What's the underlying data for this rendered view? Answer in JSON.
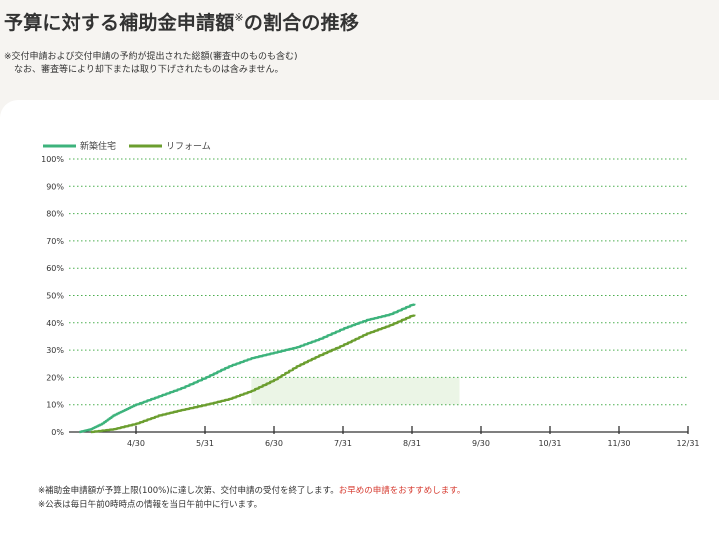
{
  "header": {
    "title": "予算に対する補助金申請額",
    "title_mark": "※",
    "title_suffix": "の割合の推移",
    "note_line1": "※交付申請および交付申請の予約が提出された総額(審査中のものも含む)",
    "note_line2": "なお、審査等により却下または取り下げされたものは含みません。"
  },
  "footer": {
    "line1_prefix": "※補助金申請額が予算上限(100%)に達し次第、交付申請の受付を終了します。",
    "line1_emphasis": "お早めの申請をおすすめします。",
    "line2": "※公表は毎日午前0時時点の情報を当日午前中に行います。"
  },
  "chart_data": {
    "type": "line",
    "x_tick_labels": [
      "4/30",
      "5/31",
      "6/30",
      "7/31",
      "8/31",
      "9/30",
      "10/31",
      "11/30",
      "12/31"
    ],
    "y_tick_labels": [
      "0%",
      "10%",
      "20%",
      "30%",
      "40%",
      "50%",
      "60%",
      "70%",
      "80%",
      "90%",
      "100%"
    ],
    "ylim": [
      0,
      100
    ],
    "grid": "horizontal dotted",
    "legend_position": "top-left",
    "series": [
      {
        "name": "新築住宅",
        "color": "#3db37c",
        "points": [
          [
            "4/5",
            0
          ],
          [
            "4/10",
            1
          ],
          [
            "4/15",
            3
          ],
          [
            "4/20",
            6
          ],
          [
            "4/25",
            8
          ],
          [
            "4/30",
            10
          ],
          [
            "5/10",
            13
          ],
          [
            "5/20",
            16
          ],
          [
            "5/31",
            20
          ],
          [
            "6/10",
            24
          ],
          [
            "6/20",
            27
          ],
          [
            "6/30",
            29
          ],
          [
            "7/10",
            31
          ],
          [
            "7/20",
            34
          ],
          [
            "7/31",
            38
          ],
          [
            "8/10",
            41
          ],
          [
            "8/20",
            43
          ],
          [
            "8/31",
            47
          ]
        ]
      },
      {
        "name": "リフォーム",
        "color": "#6b9e2f",
        "points": [
          [
            "4/10",
            0
          ],
          [
            "4/20",
            1
          ],
          [
            "4/30",
            3
          ],
          [
            "5/10",
            6
          ],
          [
            "5/20",
            8
          ],
          [
            "5/31",
            10
          ],
          [
            "6/10",
            12
          ],
          [
            "6/20",
            15
          ],
          [
            "6/30",
            19
          ],
          [
            "7/10",
            24
          ],
          [
            "7/20",
            28
          ],
          [
            "7/31",
            32
          ],
          [
            "8/10",
            36
          ],
          [
            "8/20",
            39
          ],
          [
            "8/31",
            43
          ]
        ]
      }
    ],
    "highlight": {
      "x_start": "6/20",
      "x_end": "9/20",
      "y_start": 10,
      "y_end": 20,
      "color": "#e6f3e0"
    }
  }
}
